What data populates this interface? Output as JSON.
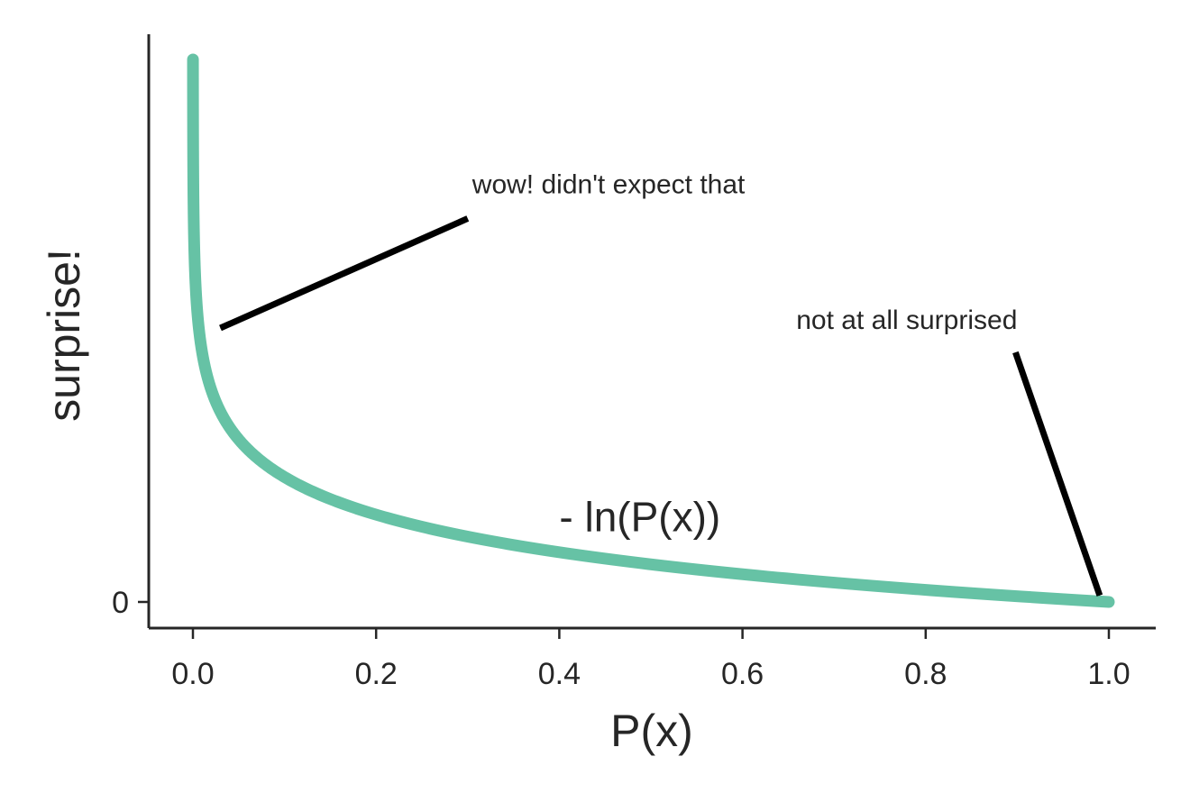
{
  "chart_data": {
    "type": "line",
    "xlabel": "P(x)",
    "ylabel": "surprise!",
    "xlim": [
      -0.05,
      1.05
    ],
    "ylim": [
      -0.5,
      10.5
    ],
    "x_ticks": [
      {
        "value": 0.0,
        "label": "0.0"
      },
      {
        "value": 0.2,
        "label": "0.2"
      },
      {
        "value": 0.4,
        "label": "0.4"
      },
      {
        "value": 0.6,
        "label": "0.6"
      },
      {
        "value": 0.8,
        "label": "0.8"
      },
      {
        "value": 1.0,
        "label": "1.0"
      }
    ],
    "y_ticks": [
      {
        "value": 0,
        "label": "0"
      }
    ],
    "grid": false,
    "series": [
      {
        "function": "-ln(x)",
        "x_range": [
          4.54e-05,
          1.0
        ],
        "color": "#66c2a5"
      }
    ],
    "curve_label": {
      "text": "- ln(P(x))",
      "x": 0.4,
      "y": 1.3
    },
    "annotations": [
      {
        "text": "wow! didn't expect that",
        "text_x": 0.3,
        "text_y": 7.7,
        "arrow_to_x": 0.03,
        "arrow_to_y": 5.05
      },
      {
        "text": "not at all surprised",
        "text_x": 0.9,
        "text_y": 5.2,
        "arrow_to_x": 0.99,
        "arrow_to_y": 0.12
      }
    ]
  }
}
